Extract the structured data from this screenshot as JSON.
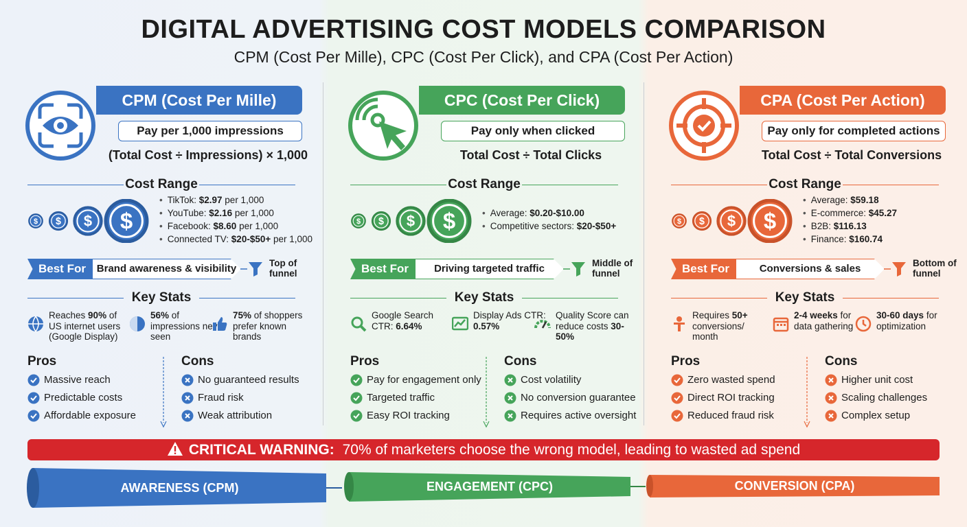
{
  "header": {
    "title": "DIGITAL ADVERTISING COST MODELS COMPARISON",
    "subtitle": "CPM (Cost Per Mille), CPC (Cost Per Click), and CPA (Cost Per Action)"
  },
  "columns": [
    {
      "title": "CPM (Cost Per Mille)",
      "tagline": "Pay per 1,000 impressions",
      "formula": "(Total Cost ÷ Impressions) × 1,000",
      "cost_range_heading": "Cost Range",
      "costs": [
        [
          {
            "text": "TikTok: "
          },
          {
            "bold": "$2.97"
          },
          {
            "text": " per 1,000"
          }
        ],
        [
          {
            "text": "YouTube: "
          },
          {
            "bold": "$2.16"
          },
          {
            "text": " per 1,000"
          }
        ],
        [
          {
            "text": "Facebook: "
          },
          {
            "bold": "$8.60"
          },
          {
            "text": " per 1,000"
          }
        ],
        [
          {
            "text": "Connected TV: "
          },
          {
            "bold": "$20-$50+"
          },
          {
            "text": " per 1,000"
          }
        ]
      ],
      "best_for_label": "Best For",
      "best_for": "Brand awareness & visibility",
      "funnel_stage": "Top of funnel",
      "key_stats_heading": "Key Stats",
      "stats": [
        [
          {
            "text": "Reaches "
          },
          {
            "bold": "90%"
          },
          {
            "text": " of US internet users (Google Display)"
          }
        ],
        [
          {
            "bold": "56%"
          },
          {
            "text": " of impressions never seen"
          }
        ],
        [
          {
            "bold": "75%"
          },
          {
            "text": " of shoppers prefer known brands"
          }
        ]
      ],
      "pros_heading": "Pros",
      "pros": [
        "Massive reach",
        "Predictable costs",
        "Affordable exposure"
      ],
      "cons_heading": "Cons",
      "cons": [
        "No guaranteed results",
        "Fraud risk",
        "Weak attribution"
      ]
    },
    {
      "title": "CPC (Cost Per Click)",
      "tagline": "Pay only when clicked",
      "formula": "Total Cost ÷ Total Clicks",
      "cost_range_heading": "Cost Range",
      "costs": [
        [
          {
            "text": "Average: "
          },
          {
            "bold": "$0.20-$10.00"
          }
        ],
        [
          {
            "text": "Competitive sectors: "
          },
          {
            "bold": "$20-$50+"
          }
        ]
      ],
      "best_for_label": "Best For",
      "best_for": "Driving targeted traffic",
      "funnel_stage": "Middle of funnel",
      "key_stats_heading": "Key Stats",
      "stats": [
        [
          {
            "text": "Google Search CTR: "
          },
          {
            "bold": "6.64%"
          }
        ],
        [
          {
            "text": "Display Ads CTR: "
          },
          {
            "bold": "0.57%"
          }
        ],
        [
          {
            "text": "Quality Score can reduce costs "
          },
          {
            "bold": "30-50%"
          }
        ]
      ],
      "pros_heading": "Pros",
      "pros": [
        "Pay for engagement only",
        "Targeted traffic",
        "Easy ROI tracking"
      ],
      "cons_heading": "Cons",
      "cons": [
        "Cost volatility",
        "No conversion guarantee",
        "Requires active oversight"
      ]
    },
    {
      "title": "CPA (Cost Per Action)",
      "tagline": "Pay only for completed actions",
      "formula": "Total Cost ÷ Total Conversions",
      "cost_range_heading": "Cost Range",
      "costs": [
        [
          {
            "text": "Average: "
          },
          {
            "bold": "$59.18"
          }
        ],
        [
          {
            "text": "E-commerce: "
          },
          {
            "bold": "$45.27"
          }
        ],
        [
          {
            "text": "B2B: "
          },
          {
            "bold": "$116.13"
          }
        ],
        [
          {
            "text": "Finance: "
          },
          {
            "bold": "$160.74"
          }
        ]
      ],
      "best_for_label": "Best For",
      "best_for": "Conversions & sales",
      "funnel_stage": "Bottom of funnel",
      "key_stats_heading": "Key Stats",
      "stats": [
        [
          {
            "text": "Requires "
          },
          {
            "bold": "50+"
          },
          {
            "text": " conversions/ month"
          }
        ],
        [
          {
            "bold": "2-4 weeks"
          },
          {
            "text": " for data gathering"
          }
        ],
        [
          {
            "bold": "30-60 days"
          },
          {
            "text": " for optimization"
          }
        ]
      ],
      "pros_heading": "Pros",
      "pros": [
        "Zero wasted spend",
        "Direct ROI tracking",
        "Reduced fraud risk"
      ],
      "cons_heading": "Cons",
      "cons": [
        "Higher unit cost",
        "Scaling challenges",
        "Complex setup"
      ]
    }
  ],
  "warning": {
    "label": "CRITICAL WARNING:",
    "text": "70% of marketers choose the wrong model, leading to wasted ad spend"
  },
  "funnel": [
    "AWARENESS (CPM)",
    "ENGAGEMENT (CPC)",
    "CONVERSION (CPA)"
  ]
}
